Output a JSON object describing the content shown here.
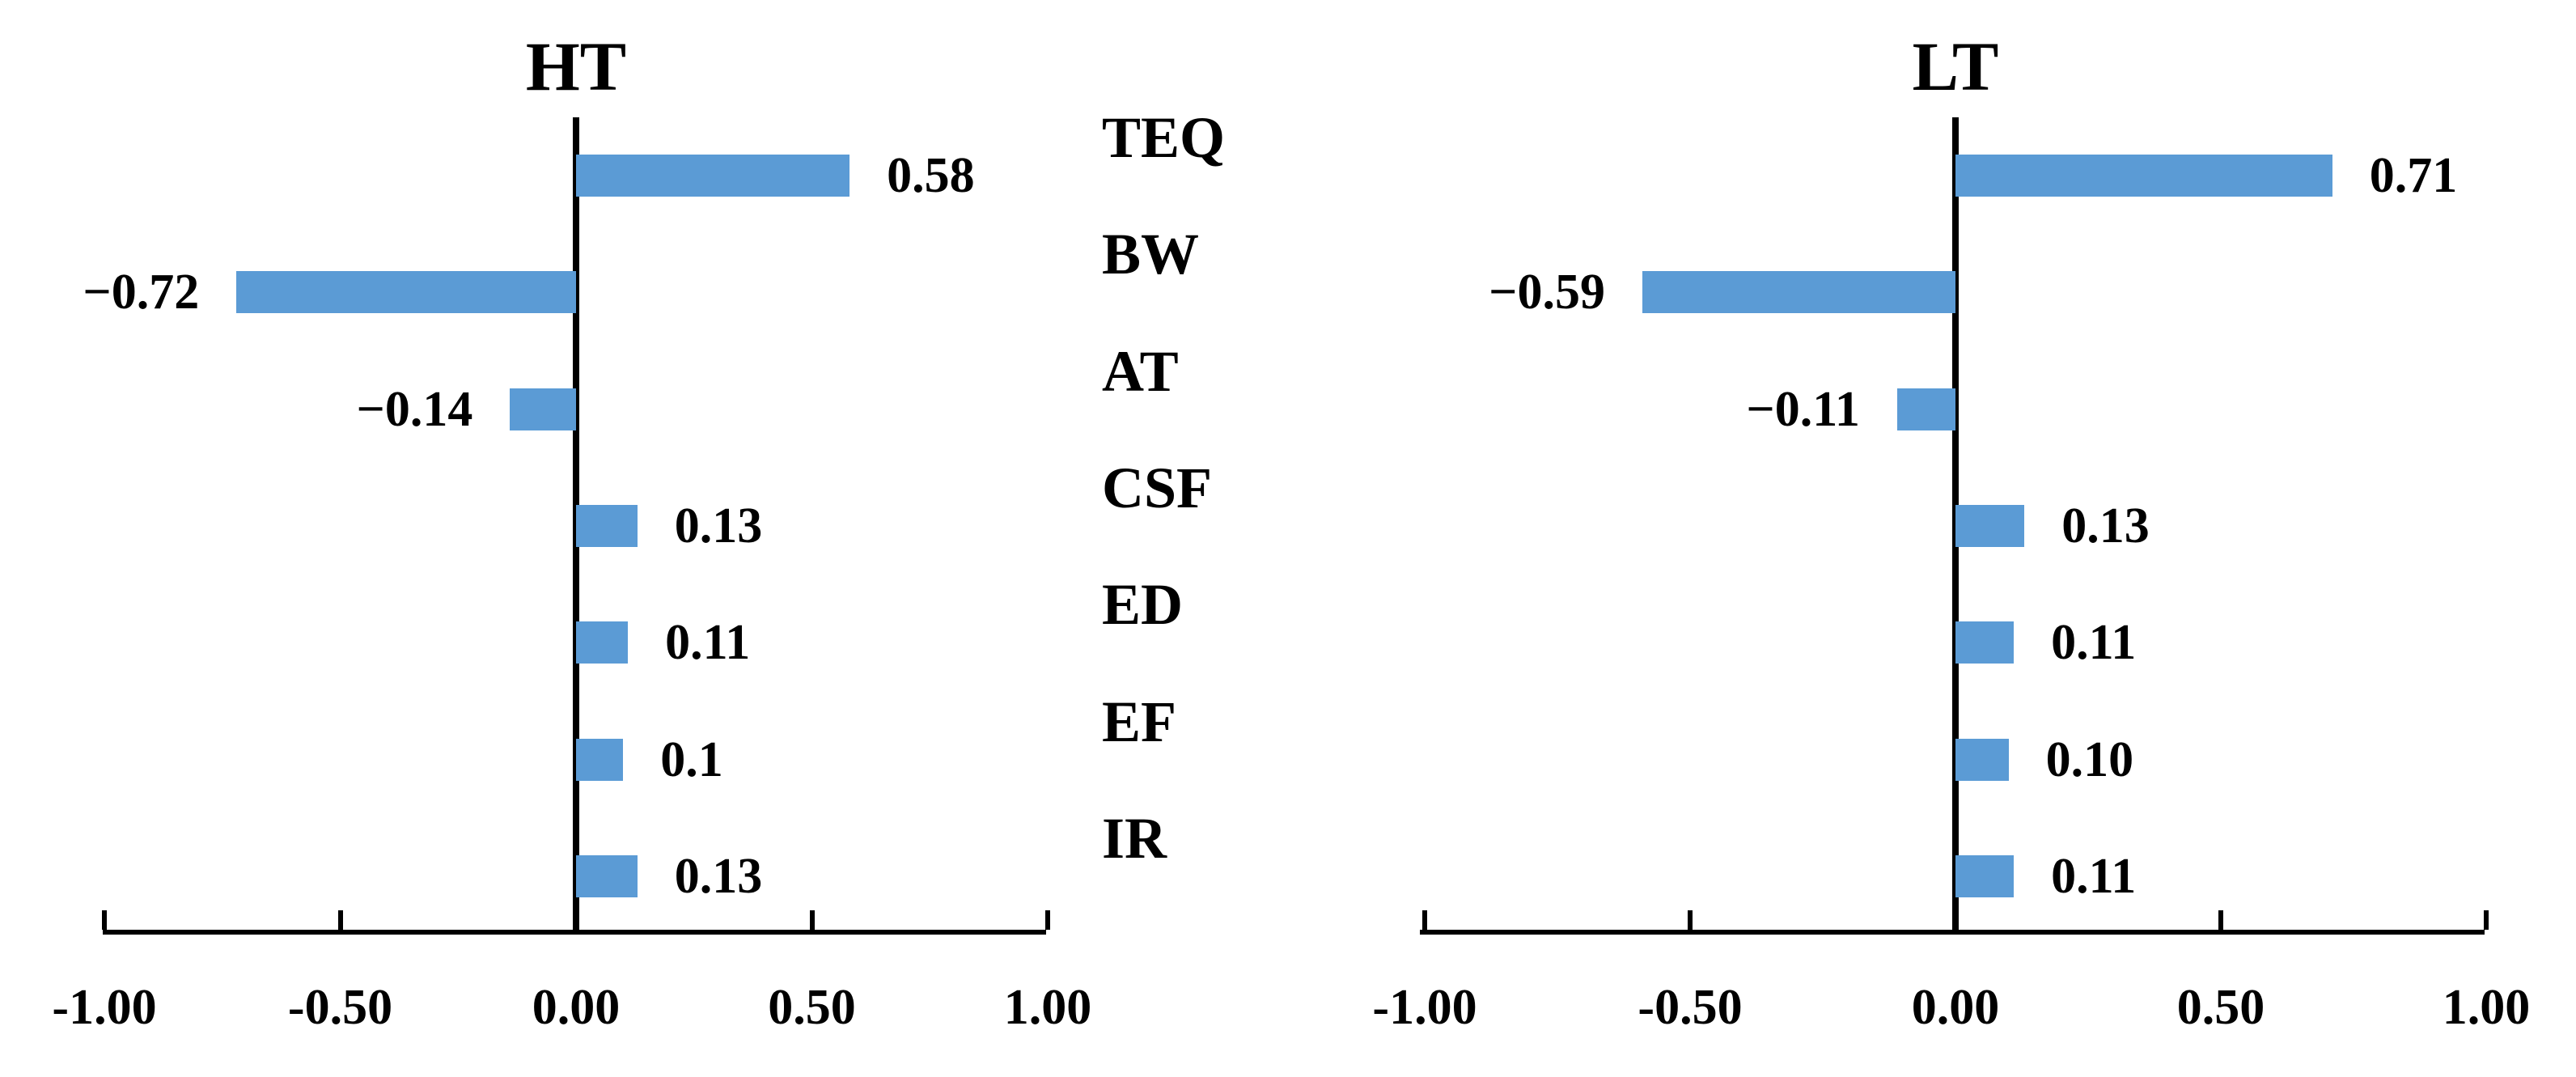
{
  "colors": {
    "bar": "#5B9BD5",
    "axis": "#000000",
    "background": "#FFFFFF"
  },
  "category_column": {
    "labels": [
      "TEQ",
      "BW",
      "AT",
      "CSF",
      "ED",
      "EF",
      "IR"
    ]
  },
  "chart_data": [
    {
      "type": "bar",
      "orientation": "horizontal",
      "title": "HT",
      "categories": [
        "TEQ",
        "BW",
        "AT",
        "CSF",
        "ED",
        "EF",
        "IR"
      ],
      "values": [
        0.58,
        -0.72,
        -0.14,
        0.13,
        0.11,
        0.1,
        0.13
      ],
      "value_labels": [
        "0.58",
        "−0.72",
        "−0.14",
        "0.13",
        "0.11",
        "0.1",
        "0.13"
      ],
      "xlim": [
        -1.0,
        1.0
      ],
      "x_tick_values": [
        -1.0,
        -0.5,
        0.0,
        0.5,
        1.0
      ],
      "x_tick_labels": [
        "-1.00",
        "-0.50",
        "0.00",
        "0.50",
        "1.00"
      ],
      "xlabel": "",
      "ylabel": "",
      "grid": false,
      "legend": "none"
    },
    {
      "type": "bar",
      "orientation": "horizontal",
      "title": "LT",
      "categories": [
        "TEQ",
        "BW",
        "AT",
        "CSF",
        "ED",
        "EF",
        "IR"
      ],
      "values": [
        0.71,
        -0.59,
        -0.11,
        0.13,
        0.11,
        0.1,
        0.11
      ],
      "value_labels": [
        "0.71",
        "−0.59",
        "−0.11",
        "0.13",
        "0.11",
        "0.10",
        "0.11"
      ],
      "xlim": [
        -1.0,
        1.0
      ],
      "x_tick_values": [
        -1.0,
        -0.5,
        0.0,
        0.5,
        1.0
      ],
      "x_tick_labels": [
        "-1.00",
        "-0.50",
        "0.00",
        "0.50",
        "1.00"
      ],
      "xlabel": "",
      "ylabel": "",
      "grid": false,
      "legend": "none"
    }
  ]
}
